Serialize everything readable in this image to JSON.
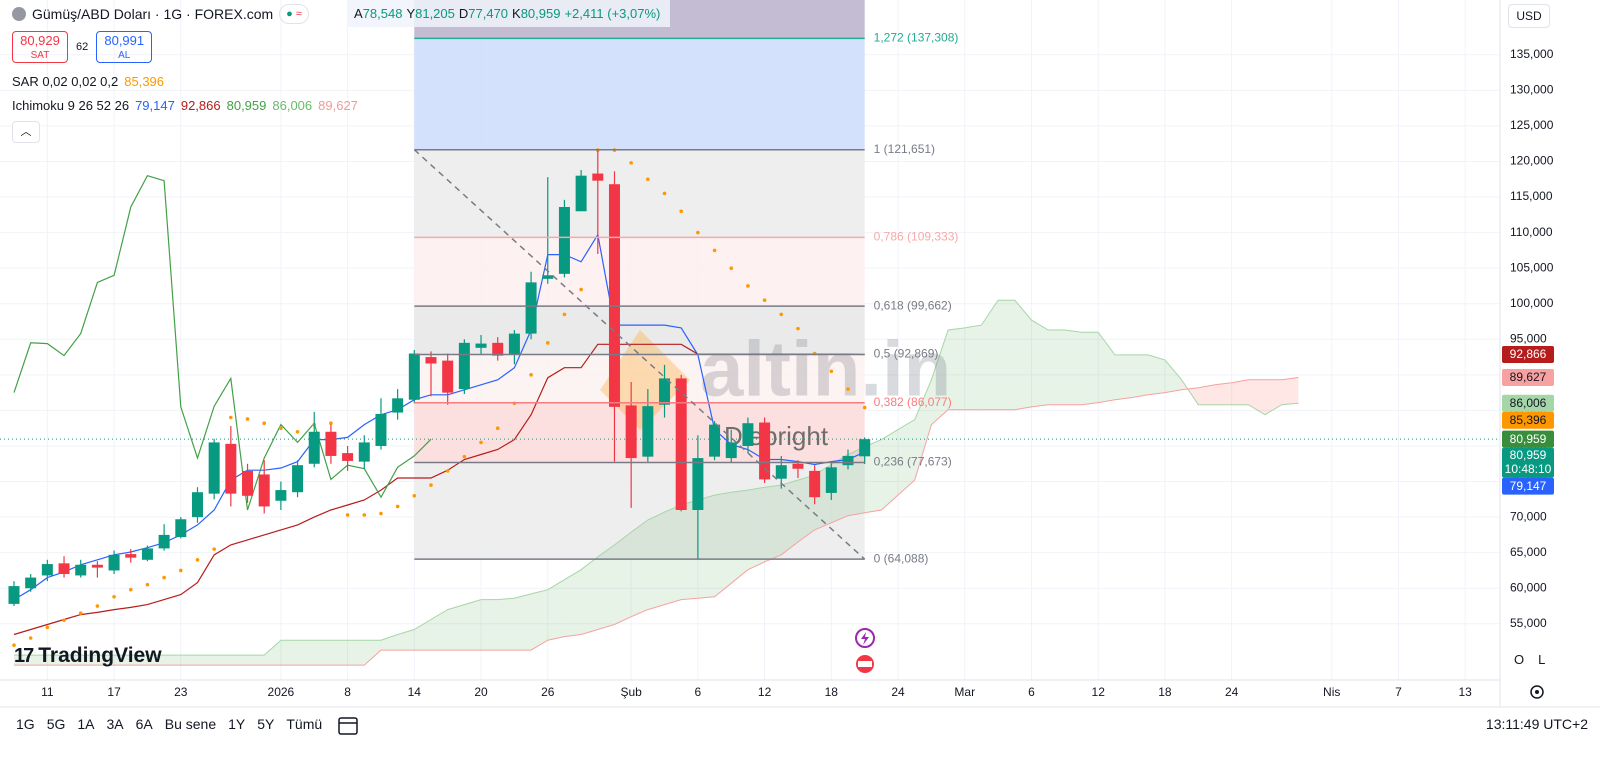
{
  "header": {
    "symbol": "Gümüş/ABD Doları · 1G · FOREX.com",
    "ohlc": [
      {
        "key": "A",
        "text": "78,548"
      },
      {
        "key": "Y",
        "text": "81,205"
      },
      {
        "key": "D",
        "text": "77,470"
      },
      {
        "key": "K",
        "text": "80,959"
      }
    ],
    "change": "+2,411 (+3,07%)",
    "sell": {
      "price": "80,929",
      "label": "SAT"
    },
    "spread": "62",
    "buy": {
      "price": "80,991",
      "label": "AL"
    },
    "indicators": [
      {
        "name": "SAR 0,02 0,02 0,2",
        "values": [
          {
            "text": "85,396",
            "color": "#ff9800"
          }
        ]
      },
      {
        "name": "Ichimoku 9 26 52 26",
        "values": [
          {
            "text": "79,147",
            "color": "#2962ff"
          },
          {
            "text": "92,866",
            "color": "#b71c1c"
          },
          {
            "text": "80,959",
            "color": "#43a047"
          },
          {
            "text": "86,006",
            "color": "#66bb6a"
          },
          {
            "text": "89,627",
            "color": "#ef9a9a"
          }
        ]
      }
    ]
  },
  "currency": "USD",
  "scale_buttons": [
    "O",
    "L"
  ],
  "timeframes": [
    "1G",
    "5G",
    "1A",
    "3A",
    "6A",
    "Bu sene",
    "1Y",
    "5Y",
    "Tümü"
  ],
  "clock": "13:11:49 UTC+2",
  "logo": "TradingView",
  "watermarks": [
    "altin.in",
    "Diebright"
  ],
  "chart_data": {
    "type": "candlestick",
    "categories": [
      null,
      null,
      "11",
      null,
      null,
      null,
      "17",
      null,
      null,
      null,
      "23",
      null,
      null,
      null,
      null,
      null,
      "2026",
      null,
      null,
      null,
      "8",
      null,
      null,
      null,
      "14",
      null,
      null,
      null,
      "20",
      null,
      null,
      null,
      "26",
      null,
      null,
      null,
      null,
      "Şub",
      null,
      null,
      null,
      "6",
      null,
      null,
      null,
      "12",
      null,
      null,
      null,
      "18",
      null,
      null,
      null,
      "24",
      null,
      null,
      null,
      "Mar",
      null,
      null,
      null,
      "6",
      null,
      null,
      null,
      "12",
      null,
      null,
      null,
      "18",
      null,
      null,
      null,
      "24",
      null,
      null,
      null,
      null,
      null,
      "Nis",
      null,
      null,
      null,
      "7",
      null,
      null,
      null,
      "13",
      null
    ],
    "open": [
      57.8,
      60,
      61.8,
      63.5,
      61.8,
      63.3,
      62.5,
      64.8,
      64,
      65.6,
      67.2,
      70,
      73.3,
      80.3,
      76.5,
      76,
      72.3,
      73.5,
      77.5,
      82,
      79,
      77.8,
      80,
      84.7,
      86.5,
      92.5,
      92,
      88,
      93.8,
      94.5,
      92.8,
      95.8,
      103.5,
      104.2,
      113,
      118.3,
      116.8,
      85.7,
      78.5,
      85.8,
      89.5,
      71,
      78.5,
      78.3,
      80,
      83.3,
      75.4,
      77.5,
      76.5,
      73.4,
      77.3,
      78.548,
      null,
      null,
      null,
      null,
      null,
      null,
      null,
      null,
      null,
      null,
      null,
      null,
      null,
      null,
      null,
      null,
      null,
      null,
      null,
      null,
      null,
      null,
      null,
      null,
      null,
      null,
      null,
      null,
      null,
      null,
      null,
      null,
      null,
      null,
      null,
      null,
      null
    ],
    "high": [
      61,
      62,
      64,
      64.5,
      64,
      63.8,
      65.3,
      65.5,
      66,
      69,
      70,
      74.2,
      81,
      82.8,
      77.5,
      78,
      75,
      78,
      84.8,
      83,
      80,
      81.5,
      86.7,
      88,
      93.5,
      93.3,
      93,
      95,
      95.6,
      95.3,
      96.3,
      104.5,
      117.8,
      114.6,
      118.8,
      121.651,
      118.6,
      89,
      88,
      91.4,
      90,
      81.5,
      83.5,
      82.3,
      84,
      84,
      78.6,
      78,
      77.3,
      77.6,
      79.5,
      81.205,
      null,
      null,
      null,
      null,
      null,
      null,
      null,
      null,
      null,
      null,
      null,
      null,
      null,
      null,
      null,
      null,
      null,
      null,
      null,
      null,
      null,
      null,
      null,
      null,
      null,
      null,
      null,
      null,
      null,
      null,
      null,
      null,
      null,
      null,
      null,
      null,
      null
    ],
    "low": [
      57.5,
      59.5,
      61,
      61.5,
      61.5,
      61.5,
      62,
      63.6,
      63.8,
      65.3,
      67,
      69.2,
      72.5,
      71.5,
      72,
      70.5,
      71,
      72.8,
      77,
      77.5,
      76.5,
      76.8,
      79.5,
      83.7,
      86,
      87,
      85.8,
      87.3,
      92.8,
      92,
      91.5,
      95,
      102.8,
      103.7,
      113,
      107,
      77.8,
      71.3,
      77.8,
      84,
      70.8,
      64.088,
      78,
      77.6,
      79,
      74.8,
      74,
      75.5,
      71.8,
      72.4,
      76.7,
      77.47,
      null,
      null,
      null,
      null,
      null,
      null,
      null,
      null,
      null,
      null,
      null,
      null,
      null,
      null,
      null,
      null,
      null,
      null,
      null,
      null,
      null,
      null,
      null,
      null,
      null,
      null,
      null,
      null,
      null,
      null,
      null,
      null,
      null,
      null,
      null,
      null,
      null
    ],
    "close": [
      60.3,
      61.5,
      63.4,
      62,
      63.3,
      62.9,
      64.7,
      64.3,
      65.6,
      67.5,
      69.7,
      73.5,
      80.5,
      73.3,
      73,
      71.5,
      73.8,
      77.3,
      82,
      78.6,
      77.9,
      80.5,
      84.5,
      86.7,
      93,
      91.6,
      87.5,
      94.5,
      94.4,
      92.7,
      95.8,
      103,
      104,
      113.6,
      118,
      117.3,
      85.5,
      78.3,
      85.6,
      89.5,
      71,
      78.3,
      83,
      80.5,
      83.2,
      75.3,
      77.3,
      76.8,
      72.8,
      77,
      78.6,
      80.959,
      null,
      null,
      null,
      null,
      null,
      null,
      null,
      null,
      null,
      null,
      null,
      null,
      null,
      null,
      null,
      null,
      null,
      null,
      null,
      null,
      null,
      null,
      null,
      null,
      null,
      null,
      null,
      null,
      null,
      null,
      null,
      null,
      null,
      null,
      null,
      null,
      null
    ],
    "up_color": "#089981",
    "down_color": "#f23645",
    "ylim": [
      47.1,
      142.7
    ],
    "yticks": [
      {
        "value": 55,
        "label": "55,000"
      },
      {
        "value": 60,
        "label": "60,000"
      },
      {
        "value": 65,
        "label": "65,000"
      },
      {
        "value": 70,
        "label": "70,000"
      },
      {
        "value": 75,
        "label": "75,000"
      },
      {
        "value": 80,
        "label": "80,000"
      },
      {
        "value": 85,
        "label": "85,000"
      },
      {
        "value": 90,
        "label": "90,000"
      },
      {
        "value": 95,
        "label": "95,000"
      },
      {
        "value": 100,
        "label": "100,000"
      },
      {
        "value": 105,
        "label": "105,000"
      },
      {
        "value": 110,
        "label": "110,000"
      },
      {
        "value": 115,
        "label": "115,000"
      },
      {
        "value": 120,
        "label": "120,000"
      },
      {
        "value": 125,
        "label": "125,000"
      },
      {
        "value": 130,
        "label": "130,000"
      },
      {
        "value": 135,
        "label": "135,000"
      }
    ],
    "grid": true,
    "lines": [
      {
        "color": "#2962ff",
        "values": [
          58.4,
          59.8,
          61.5,
          62.3,
          63.3,
          64,
          64.7,
          65.1,
          65.7,
          66.4,
          67.5,
          68.9,
          71,
          75.2,
          76.6,
          76.6,
          76.9,
          77.8,
          80.9,
          80.9,
          81.2,
          83,
          84.4,
          85.1,
          86.5,
          87.2,
          87.2,
          87.9,
          88.6,
          89.3,
          91,
          96.3,
          106.9,
          106.9,
          105.9,
          109.7,
          97,
          97,
          97,
          97,
          96.6,
          92.8,
          82.3,
          80.2,
          79.5,
          78.1,
          78.1,
          77.8,
          77.4,
          77.8,
          78.1,
          79.147,
          null,
          null,
          null,
          null,
          null,
          null,
          null,
          null,
          null,
          null,
          null,
          null,
          null,
          null,
          null,
          null,
          null,
          null,
          null,
          null,
          null,
          null,
          null,
          null,
          null,
          null,
          null,
          null,
          null,
          null,
          null,
          null,
          null,
          null,
          null,
          null,
          null
        ]
      },
      {
        "color": "#b71c1c",
        "values": [
          53.5,
          54.2,
          54.9,
          55.6,
          56.3,
          56.6,
          57,
          57.3,
          57.7,
          58.4,
          59.1,
          60.8,
          64.7,
          66.1,
          66.8,
          67.5,
          68.2,
          68.9,
          70,
          71,
          71.7,
          72.4,
          73.8,
          75.5,
          75.5,
          75.5,
          76.6,
          78.1,
          78.8,
          79.5,
          80.9,
          84.4,
          89.6,
          91,
          91,
          94.3,
          94.3,
          94.3,
          94.3,
          94.3,
          94.3,
          92.9,
          92.9,
          92.9,
          92.9,
          92.9,
          92.9,
          92.9,
          92.9,
          92.9,
          92.9,
          92.866,
          null,
          null,
          null,
          null,
          null,
          null,
          null,
          null,
          null,
          null,
          null,
          null,
          null,
          null,
          null,
          null,
          null,
          null,
          null,
          null,
          null,
          null,
          null,
          null,
          null,
          null,
          null,
          null,
          null,
          null,
          null,
          null,
          null,
          null,
          null,
          null,
          null
        ]
      },
      {
        "color": "#43a047",
        "values": [
          87.5,
          94.5,
          94.4,
          92.7,
          95.8,
          103,
          104,
          113.6,
          118,
          117.3,
          85.5,
          78.3,
          85.6,
          89.5,
          71,
          78.3,
          83,
          80.5,
          83.2,
          75.3,
          77.3,
          76.8,
          72.8,
          77,
          78.6,
          80.959,
          null,
          null,
          null,
          null,
          null,
          null,
          null,
          null,
          null,
          null,
          null,
          null,
          null,
          null,
          null,
          null,
          null,
          null,
          null,
          null,
          null,
          null,
          null,
          null,
          null,
          null,
          null,
          null,
          null,
          null,
          null,
          null,
          null,
          null,
          null,
          null,
          null,
          null,
          null,
          null,
          null,
          null,
          null,
          null,
          null,
          null,
          null,
          null,
          null,
          null,
          null,
          null,
          null,
          null,
          null,
          null,
          null,
          null,
          null,
          null,
          null,
          null,
          null
        ]
      }
    ],
    "cloud": {
      "a": {
        "color": "#a5d6a7",
        "values": [
          50.6,
          50.6,
          50.6,
          50.6,
          50.6,
          50.6,
          50.6,
          50.6,
          50.6,
          50.6,
          50.6,
          50.6,
          50.6,
          50.6,
          50.6,
          50.6,
          52.7,
          52.7,
          52.7,
          52.7,
          52.7,
          52.7,
          52.7,
          53.5,
          54.2,
          55.6,
          57,
          57.7,
          58.4,
          58.4,
          58.6,
          59.2,
          59.8,
          61.2,
          62.6,
          64.4,
          66.1,
          67.9,
          69.6,
          70.7,
          71.7,
          72.4,
          73.1,
          73.5,
          73.8,
          74.2,
          74.5,
          75.2,
          75.9,
          77.4,
          78.8,
          79.9,
          80.9,
          82.3,
          83.7,
          89.3,
          96.3,
          96.6,
          97,
          100.5,
          100.5,
          97.7,
          96.3,
          96.3,
          96,
          96,
          92.8,
          92.8,
          92.8,
          92.1,
          89.3,
          85.8,
          85.8,
          85.8,
          85.8,
          84.4,
          85.8,
          86.006,
          null,
          null,
          null,
          null,
          null,
          null,
          null,
          null,
          null,
          null,
          null
        ]
      },
      "b": {
        "color": "#f7a1a1",
        "values": [
          49.2,
          49.2,
          49.2,
          49.2,
          49.2,
          49.2,
          49.2,
          49.2,
          49.2,
          49.2,
          49.2,
          49.2,
          49.2,
          49.2,
          49.2,
          49.2,
          49.2,
          49.2,
          49.2,
          49.2,
          49.2,
          49.2,
          51.3,
          51.3,
          51.3,
          51.3,
          51.3,
          51.3,
          51.3,
          51.3,
          51.3,
          51.3,
          52.7,
          53.2,
          53.5,
          54.2,
          54.9,
          56,
          57,
          57.7,
          58.4,
          58.6,
          58.8,
          60.7,
          62.6,
          63.7,
          64.7,
          66.5,
          68.2,
          69.2,
          70.2,
          70.6,
          71,
          73.1,
          75.2,
          83,
          85.1,
          85.1,
          85.1,
          85.1,
          85.1,
          85.5,
          85.8,
          85.8,
          85.8,
          86.1,
          86.5,
          86.8,
          87.2,
          87.5,
          87.9,
          88.2,
          88.6,
          88.9,
          89.3,
          89.3,
          89.3,
          89.627,
          null,
          null,
          null,
          null,
          null,
          null,
          null,
          null,
          null,
          null,
          null
        ]
      },
      "up_fill": "rgba(67,160,71,0.13)",
      "down_fill": "rgba(244,67,54,0.13)"
    },
    "sar": {
      "color": "#ff9800",
      "values": [
        52,
        53,
        54.5,
        55.5,
        56.5,
        57.5,
        58.8,
        59.8,
        60.5,
        61.5,
        62.5,
        64,
        65.5,
        84,
        83.8,
        83.2,
        82.5,
        82,
        83,
        83.2,
        70.3,
        70.3,
        70.5,
        71.5,
        73,
        74.5,
        76.5,
        78.5,
        80.5,
        82.5,
        86,
        90,
        94.5,
        98.5,
        102,
        121.6,
        121.6,
        119.8,
        117.5,
        115.5,
        113,
        110,
        107.5,
        105,
        102.5,
        100.5,
        98.5,
        96.5,
        93,
        90.5,
        88,
        85.396,
        null,
        null,
        null,
        null,
        null,
        null,
        null,
        null,
        null,
        null,
        null,
        null,
        null,
        null,
        null,
        null,
        null,
        null,
        null,
        null,
        null,
        null,
        null,
        null,
        null,
        null,
        null,
        null,
        null,
        null,
        null,
        null,
        null,
        null,
        null,
        null,
        null
      ]
    },
    "fib": {
      "top_fill": "#c4bcd3",
      "levels": [
        {
          "value": 137.308,
          "label": "1,272 (137,308)",
          "color": "#22ab94",
          "fill": "#cddcfb"
        },
        {
          "value": 121.651,
          "label": "1 (121,651)",
          "color": "#787b86",
          "fill": "#ebebeb"
        },
        {
          "value": 109.333,
          "label": "0,786 (109,333)",
          "color": "#f7a9a7",
          "fill": "#fdeeee"
        },
        {
          "value": 99.662,
          "label": "0,618 (99,662)",
          "color": "#787b86",
          "fill": "#e6e6e6"
        },
        {
          "value": 92.869,
          "label": "0,5 (92,869)",
          "color": "#787b86",
          "fill": "#fbf1f1"
        },
        {
          "value": 86.077,
          "label": "0,382 (86,077)",
          "color": "#f77c80",
          "fill": "#fbdadb"
        },
        {
          "value": 77.673,
          "label": "0,236 (77,673)",
          "color": "#787b86",
          "fill": "#ebebeb"
        },
        {
          "value": 64.088,
          "label": "0 (64,088)",
          "color": "#787b86"
        }
      ]
    },
    "price_labels": [
      {
        "value": 92.866,
        "label": "92,866",
        "color": "#b71c1c",
        "text_color": "#ffffff"
      },
      {
        "value": 89.627,
        "label": "89,627",
        "color": "#f7a1a1",
        "text_color": "#131722"
      },
      {
        "value": 86.006,
        "label": "86,006",
        "color": "#a5d6a7",
        "text_color": "#131722"
      },
      {
        "value": 85.396,
        "label": "85,396",
        "color": "#ff9800",
        "text_color": "#131722"
      },
      {
        "value": 80.959,
        "label": "80,959",
        "color": "#388e3c",
        "text_color": "#ffffff"
      }
    ],
    "current": {
      "value": 80.959,
      "label": "80,959",
      "countdown": "10:48:10",
      "color": "#089981"
    },
    "tenkan_label": {
      "value": 79.147,
      "label": "79,147",
      "color": "#2962ff"
    }
  }
}
